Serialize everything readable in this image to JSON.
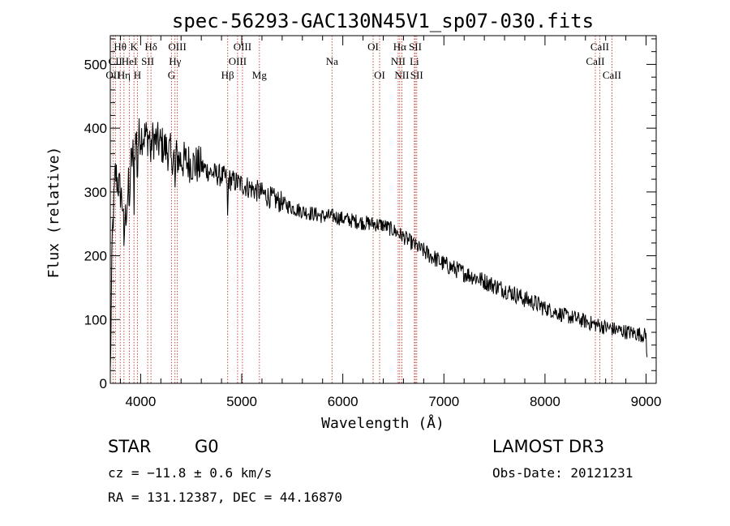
{
  "chart_data": {
    "type": "line",
    "title": "spec-56293-GAC130N45V1_sp07-030.fits",
    "xlabel": "Wavelength (Å)",
    "ylabel": "Flux (relative)",
    "xlim": [
      3700,
      9100
    ],
    "ylim": [
      0,
      545
    ],
    "xticks": [
      4000,
      5000,
      6000,
      7000,
      8000,
      9000
    ],
    "yticks": [
      0,
      100,
      200,
      300,
      400,
      500
    ],
    "series": [
      {
        "name": "flux",
        "trend": [
          [
            3700,
            10
          ],
          [
            3720,
            230
          ],
          [
            3750,
            330
          ],
          [
            3800,
            300
          ],
          [
            3850,
            260
          ],
          [
            3900,
            340
          ],
          [
            3950,
            380
          ],
          [
            4000,
            390
          ],
          [
            4100,
            385
          ],
          [
            4200,
            375
          ],
          [
            4300,
            360
          ],
          [
            4400,
            350
          ],
          [
            4500,
            345
          ],
          [
            4600,
            340
          ],
          [
            4700,
            330
          ],
          [
            4800,
            325
          ],
          [
            4900,
            318
          ],
          [
            5000,
            312
          ],
          [
            5100,
            305
          ],
          [
            5200,
            298
          ],
          [
            5300,
            290
          ],
          [
            5400,
            283
          ],
          [
            5500,
            275
          ],
          [
            5600,
            270
          ],
          [
            5700,
            266
          ],
          [
            5800,
            262
          ],
          [
            5900,
            262
          ],
          [
            6000,
            258
          ],
          [
            6100,
            255
          ],
          [
            6200,
            252
          ],
          [
            6300,
            250
          ],
          [
            6400,
            248
          ],
          [
            6500,
            240
          ],
          [
            6600,
            230
          ],
          [
            6700,
            218
          ],
          [
            6800,
            207
          ],
          [
            6900,
            197
          ],
          [
            7000,
            187
          ],
          [
            7100,
            180
          ],
          [
            7200,
            173
          ],
          [
            7300,
            167
          ],
          [
            7400,
            160
          ],
          [
            7500,
            153
          ],
          [
            7600,
            147
          ],
          [
            7700,
            140
          ],
          [
            7800,
            132
          ],
          [
            7900,
            126
          ],
          [
            8000,
            118
          ],
          [
            8100,
            112
          ],
          [
            8200,
            106
          ],
          [
            8300,
            102
          ],
          [
            8400,
            97
          ],
          [
            8500,
            92
          ],
          [
            8600,
            88
          ],
          [
            8700,
            84
          ],
          [
            8800,
            81
          ],
          [
            8900,
            78
          ],
          [
            9000,
            75
          ],
          [
            9010,
            40
          ]
        ]
      }
    ],
    "lines": [
      {
        "label": "Hθ",
        "x": 3798,
        "row": 0
      },
      {
        "label": "Hη",
        "x": 3835,
        "row": 2
      },
      {
        "label": "CII",
        "x": 3750,
        "row": 1
      },
      {
        "label": "OII",
        "x": 3727,
        "row": 2
      },
      {
        "label": "HeI",
        "x": 3889,
        "row": 1
      },
      {
        "label": "K",
        "x": 3934,
        "row": 0
      },
      {
        "label": "H",
        "x": 3968,
        "row": 2
      },
      {
        "label": "SII",
        "x": 4070,
        "row": 1
      },
      {
        "label": "Hδ",
        "x": 4102,
        "row": 0
      },
      {
        "label": "OIII",
        "x": 4363,
        "row": 0
      },
      {
        "label": "Hγ",
        "x": 4340,
        "row": 1
      },
      {
        "label": "G",
        "x": 4305,
        "row": 2
      },
      {
        "label": "Hβ",
        "x": 4861,
        "row": 2
      },
      {
        "label": "OIII",
        "x": 5007,
        "row": 0
      },
      {
        "label": "OIII",
        "x": 4959,
        "row": 1
      },
      {
        "label": "Mg",
        "x": 5175,
        "row": 2
      },
      {
        "label": "Na",
        "x": 5893,
        "row": 1
      },
      {
        "label": "OI",
        "x": 6300,
        "row": 0
      },
      {
        "label": "OI",
        "x": 6364,
        "row": 2
      },
      {
        "label": "Hα",
        "x": 6563,
        "row": 0
      },
      {
        "label": "NII",
        "x": 6548,
        "row": 1
      },
      {
        "label": "NII",
        "x": 6584,
        "row": 2
      },
      {
        "label": "SII",
        "x": 6717,
        "row": 0
      },
      {
        "label": "Li",
        "x": 6708,
        "row": 1
      },
      {
        "label": "SII",
        "x": 6731,
        "row": 2
      },
      {
        "label": "CaII",
        "x": 8542,
        "row": 0
      },
      {
        "label": "CaII",
        "x": 8498,
        "row": 1
      },
      {
        "label": "CaII",
        "x": 8662,
        "row": 2
      }
    ]
  },
  "footer": {
    "class_label": "STAR",
    "subclass": "G0",
    "survey": "LAMOST DR3",
    "cz": "cz = −11.8 ± 0.6 km/s",
    "obs_date": "Obs-Date: 20121231",
    "coords": "RA = 131.12387, DEC =  44.16870"
  }
}
